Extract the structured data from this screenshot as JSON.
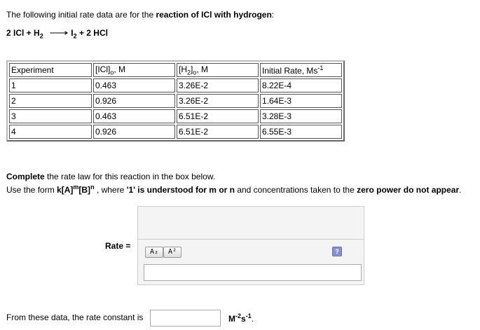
{
  "intro": {
    "text": "The following initial rate data are for the ",
    "bold": "reaction of ICl with hydrogen",
    "end": ":"
  },
  "equation": {
    "left": "2 ICl + H",
    "sub1": "2",
    "arrow": "⟶",
    "right_a": "I",
    "sub2": "2",
    "right_b": " + 2 HCl"
  },
  "table": {
    "headers": [
      {
        "main": "Experiment"
      },
      {
        "main": "[ICl]",
        "sub": "o",
        "tail": ", M"
      },
      {
        "main": "[H",
        "sub": "2",
        "tail": "]",
        "sub2": "o",
        "tail2": ", M"
      },
      {
        "main": "Initial Rate, Ms",
        "sup": "-1"
      }
    ],
    "rows": [
      [
        "1",
        "0.463",
        "3.26E-2",
        "8.22E-4"
      ],
      [
        "2",
        "0.926",
        "3.26E-2",
        "1.64E-3"
      ],
      [
        "3",
        "0.463",
        "6.51E-2",
        "3.28E-3"
      ],
      [
        "4",
        "0.926",
        "6.51E-2",
        "6.55E-3"
      ]
    ]
  },
  "instructions": {
    "line1_bold": "Complete",
    "line1": " the rate law for this reaction in the box below.",
    "line2_a": "Use the form ",
    "line2_b": "k[A]",
    "line2_m": "m",
    "line2_c": "[B]",
    "line2_n": "n",
    "line2_d": " , where ",
    "line2_e": "'1' is understood for m or n",
    "line2_f": " and concentrations taken to the ",
    "line2_g": "zero power do not appear",
    "line2_h": "."
  },
  "rate_label": "Rate =",
  "toolbar": {
    "subscript": "A₂",
    "superscript": "A²",
    "help": "?"
  },
  "rate_input_value": "",
  "constant": {
    "label": "From these data, the rate constant is",
    "value": "",
    "unit_a": "M",
    "unit_sup1": "-2",
    "unit_b": "s",
    "unit_sup2": "-1",
    "unit_end": "."
  }
}
